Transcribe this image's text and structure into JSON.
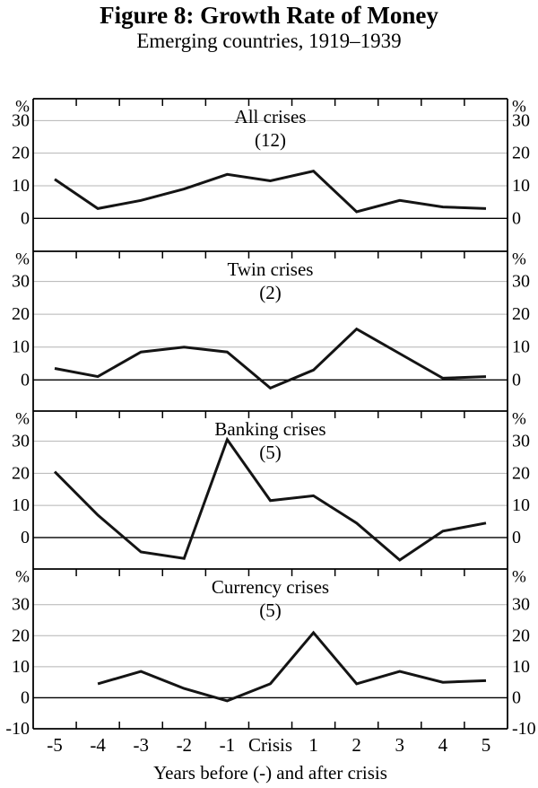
{
  "figure": {
    "title": "Figure 8: Growth Rate of Money",
    "subtitle": "Emerging countries, 1919–1939"
  },
  "chart_data": {
    "type": "line",
    "title": "Figure 8: Growth Rate of Money",
    "subtitle": "Emerging countries, 1919–1939",
    "xlabel": "Years before (-) and after crisis",
    "x_tick_labels": [
      "-5",
      "-4",
      "-3",
      "-2",
      "-1",
      "Crisis",
      "1",
      "2",
      "3",
      "4",
      "5"
    ],
    "x_values": [
      -5,
      -4,
      -3,
      -2,
      -1,
      0,
      1,
      2,
      3,
      4,
      5
    ],
    "y_unit": "%",
    "y_tick_values": [
      30,
      20,
      10,
      0
    ],
    "grid": true,
    "legend_position": "none",
    "line_color": "#141414",
    "grid_color": "#b4b4b4",
    "panels": [
      {
        "title": "All crises",
        "count_label": "(12)",
        "values": [
          12,
          3,
          5.5,
          9,
          13.5,
          11.5,
          14.5,
          2,
          5.5,
          3.5,
          3
        ],
        "ylim": [
          -10.1,
          36.7
        ],
        "extra_y_ticks": []
      },
      {
        "title": "Twin crises",
        "count_label": "(2)",
        "values": [
          3.5,
          1,
          8.5,
          10,
          8.5,
          -2.5,
          3,
          15.5,
          8,
          0.5,
          1
        ],
        "ylim": [
          -9.5,
          39.2
        ],
        "extra_y_ticks": []
      },
      {
        "title": "Banking crises",
        "count_label": "(5)",
        "values": [
          20.5,
          7,
          -4.5,
          -6.5,
          30.5,
          11.5,
          13,
          4.5,
          -7,
          2,
          4.5
        ],
        "ylim": [
          -9.8,
          39.4
        ],
        "extra_y_ticks": []
      },
      {
        "title": "Currency crises",
        "count_label": "(5)",
        "values": [
          null,
          4.5,
          8.5,
          3,
          -1,
          4.5,
          21,
          4.5,
          8.5,
          5,
          5.5
        ],
        "ylim": [
          -10,
          41.5
        ],
        "extra_y_ticks": [
          -10
        ]
      }
    ]
  }
}
